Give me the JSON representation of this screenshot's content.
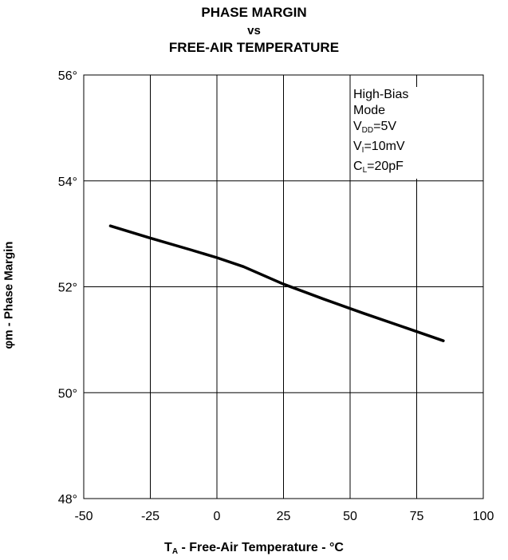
{
  "title": {
    "line1": "PHASE MARGIN",
    "line2": "vs",
    "line3": "FREE-AIR TEMPERATURE"
  },
  "xlabel": {
    "symbol": "T",
    "subscript": "A",
    "text": " - Free-Air Temperature - °C"
  },
  "ylabel": "φm - Phase Margin",
  "legend": {
    "line1": "High-Bias",
    "line2": "Mode",
    "vdd_prefix": "V",
    "vdd_sub": "DD",
    "vdd_value": "=5V",
    "vi_prefix": "V",
    "vi_sub": "I",
    "vi_value": "=10mV",
    "cl_prefix": "C",
    "cl_sub": "L",
    "cl_value": "=20pF"
  },
  "chart_data": {
    "type": "line",
    "xlim": [
      -50,
      100
    ],
    "ylim": [
      48,
      56
    ],
    "x_ticks": [
      "-50",
      "-25",
      "0",
      "25",
      "50",
      "75",
      "100"
    ],
    "y_ticks": [
      "48°",
      "50°",
      "52°",
      "54°",
      "56°"
    ],
    "grid": true,
    "series": [
      {
        "x": [
          -40,
          -25,
          -10,
          0,
          10,
          25,
          40,
          55,
          70,
          85
        ],
        "y": [
          53.15,
          52.92,
          52.7,
          52.55,
          52.38,
          52.05,
          51.77,
          51.5,
          51.24,
          50.98
        ]
      }
    ],
    "line_color": "#000000"
  }
}
